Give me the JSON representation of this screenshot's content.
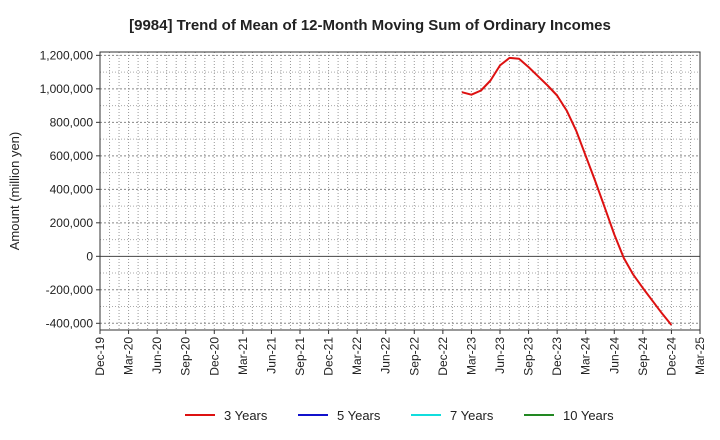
{
  "chart_data": {
    "type": "line",
    "title": "[9984]  Trend of Mean of 12-Month Moving Sum of Ordinary Incomes",
    "ylabel": "Amount (million yen)",
    "xlabel": "",
    "x_ticks": [
      "Dec-19",
      "Mar-20",
      "Jun-20",
      "Sep-20",
      "Dec-20",
      "Mar-21",
      "Jun-21",
      "Sep-21",
      "Dec-21",
      "Mar-22",
      "Jun-22",
      "Sep-22",
      "Dec-22",
      "Mar-23",
      "Jun-23",
      "Sep-23",
      "Dec-23",
      "Mar-24",
      "Jun-24",
      "Sep-24",
      "Dec-24",
      "Mar-25"
    ],
    "y_ticks": [
      "1,200,000",
      "1,000,000",
      "800,000",
      "600,000",
      "400,000",
      "200,000",
      "0",
      "-200,000",
      "-400,000"
    ],
    "ylim": [
      -440000,
      1220000
    ],
    "grid": true,
    "legend_position": "bottom",
    "series": [
      {
        "name": "3 Years",
        "color": "#dd1111",
        "x": [
          "2023-02",
          "2023-03",
          "2023-04",
          "2023-05",
          "2023-06",
          "2023-07",
          "2023-08",
          "2023-09",
          "2023-10",
          "2023-11",
          "2023-12",
          "2024-01",
          "2024-02",
          "2024-03",
          "2024-04",
          "2024-05",
          "2024-06",
          "2024-07",
          "2024-08",
          "2024-09",
          "2024-10",
          "2024-11",
          "2024-12"
        ],
        "values": [
          980000,
          965000,
          990000,
          1050000,
          1140000,
          1185000,
          1180000,
          1130000,
          1075000,
          1020000,
          960000,
          870000,
          750000,
          600000,
          450000,
          290000,
          130000,
          -10000,
          -110000,
          -190000,
          -265000,
          -340000,
          -410000
        ]
      },
      {
        "name": "5 Years",
        "color": "#1111cc",
        "x": [],
        "values": []
      },
      {
        "name": "7 Years",
        "color": "#11dddd",
        "x": [],
        "values": []
      },
      {
        "name": "10 Years",
        "color": "#228822",
        "x": [],
        "values": []
      }
    ]
  }
}
